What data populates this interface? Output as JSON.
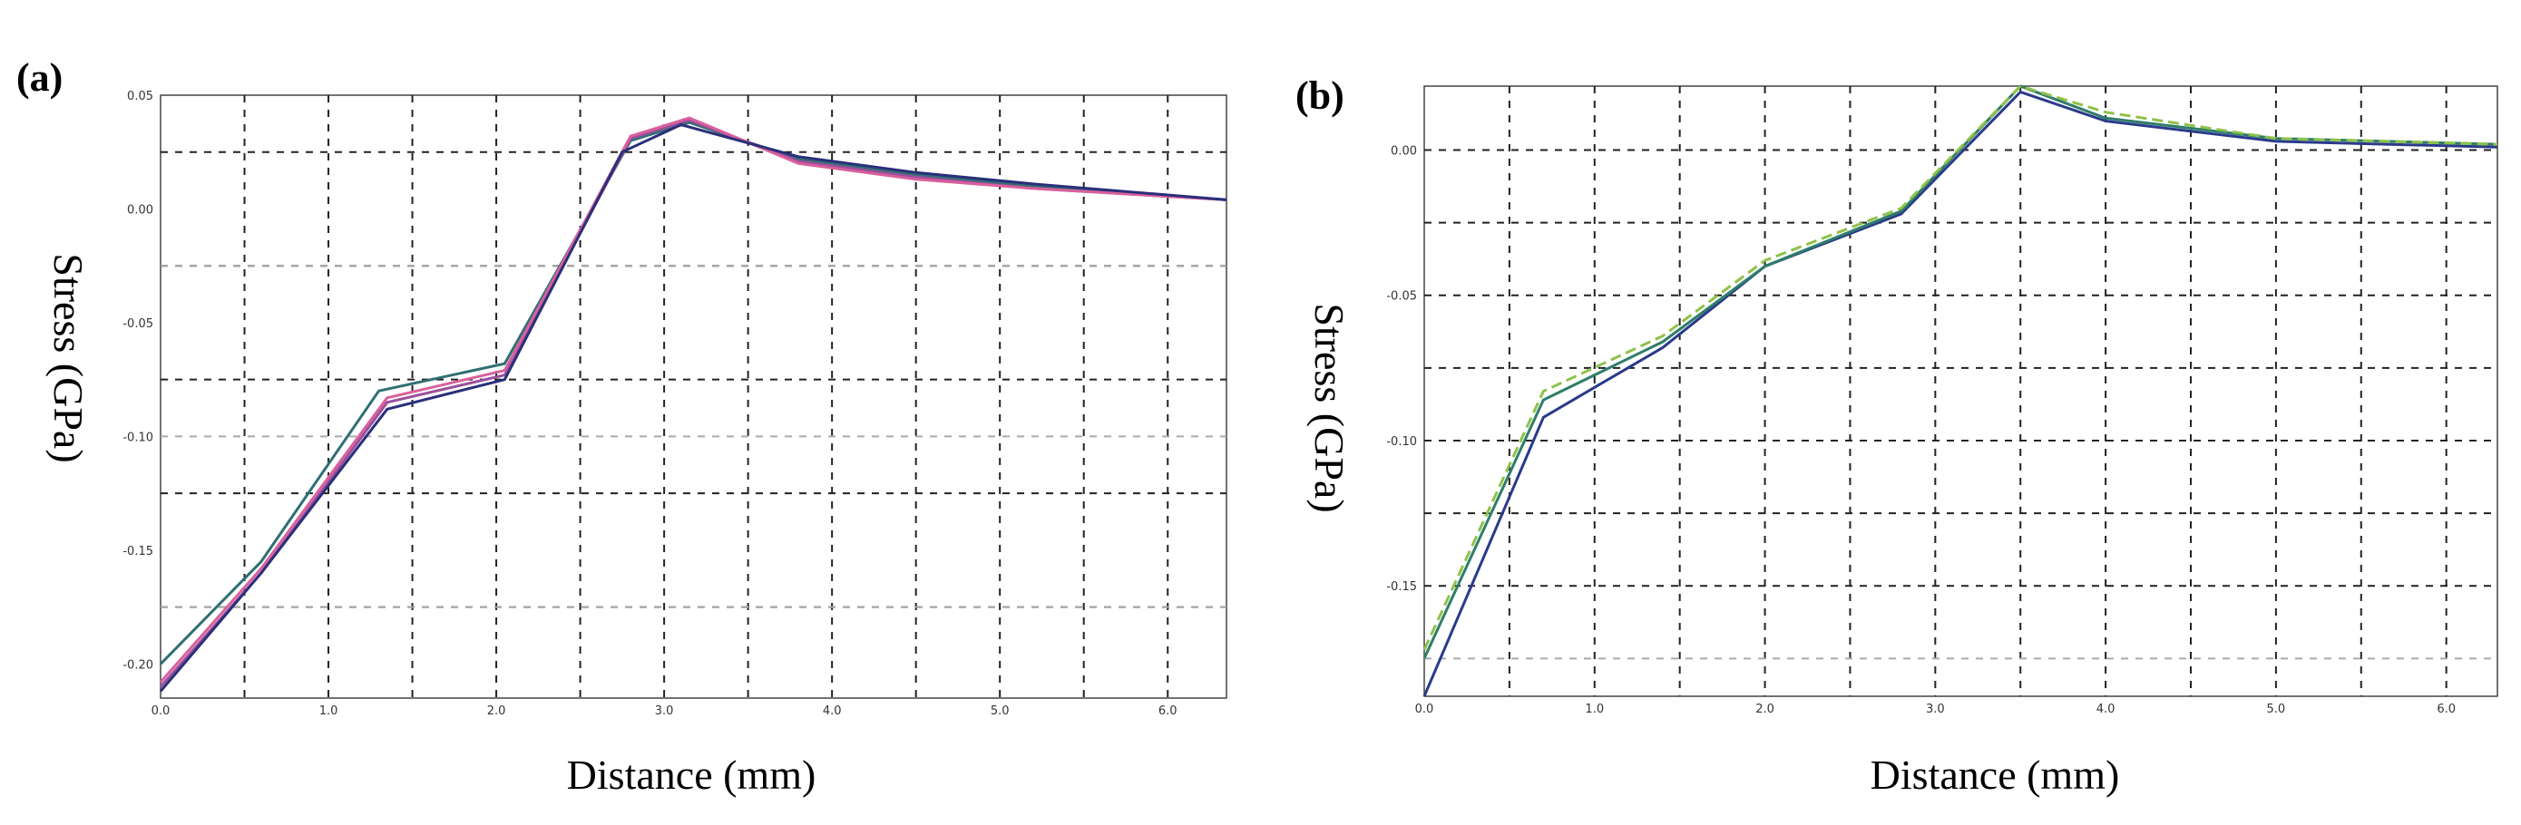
{
  "chart_data": [
    {
      "panel": "(a)",
      "type": "line",
      "xlabel": "Distance (mm)",
      "ylabel": "Stress (GPa)",
      "xlim": [
        0.0,
        6.35
      ],
      "ylim": [
        -0.215,
        0.05
      ],
      "xticks": [
        0.0,
        1.0,
        2.0,
        3.0,
        4.0,
        5.0,
        6.0
      ],
      "xtick_labels": [
        "0.0",
        "1.0",
        "2.0",
        "3.0",
        "4.0",
        "5.0",
        "6.0"
      ],
      "yticks": [
        0.05,
        0.0,
        -0.05,
        -0.1,
        -0.15,
        -0.2
      ],
      "ytick_labels": [
        "0.05",
        "0.00",
        "-0.05",
        "-0.10",
        "-0.15",
        "-0.20"
      ],
      "grid_x": [
        0.5,
        1.0,
        1.5,
        2.0,
        2.5,
        3.0,
        3.5,
        4.0,
        4.5,
        5.0,
        5.5,
        6.0
      ],
      "grid_y": [
        0.025,
        -0.025,
        -0.075,
        -0.125,
        -0.175
      ],
      "grid_light_y": [
        -0.025,
        -0.1,
        -0.175
      ],
      "series": [
        {
          "name": "teal",
          "color": "#2f6f73",
          "dash": "",
          "x": [
            0.0,
            0.6,
            1.3,
            2.05,
            2.8,
            3.15,
            3.8,
            4.5,
            5.2,
            6.35
          ],
          "y": [
            -0.2,
            -0.155,
            -0.08,
            -0.068,
            0.03,
            0.038,
            0.022,
            0.015,
            0.01,
            0.004
          ]
        },
        {
          "name": "purple",
          "color": "#9c4f9c",
          "dash": "",
          "x": [
            0.0,
            0.6,
            1.35,
            2.05,
            2.8,
            3.15,
            3.8,
            4.5,
            5.2,
            6.35
          ],
          "y": [
            -0.21,
            -0.16,
            -0.085,
            -0.073,
            0.031,
            0.039,
            0.021,
            0.014,
            0.009,
            0.004
          ]
        },
        {
          "name": "pink",
          "color": "#d9609c",
          "dash": "",
          "x": [
            0.0,
            0.6,
            1.35,
            2.05,
            2.8,
            3.15,
            3.8,
            4.5,
            5.2,
            6.35
          ],
          "y": [
            -0.208,
            -0.158,
            -0.083,
            -0.071,
            0.032,
            0.04,
            0.02,
            0.013,
            0.009,
            0.004
          ]
        },
        {
          "name": "navy",
          "color": "#2a2f7a",
          "dash": "",
          "x": [
            0.0,
            0.6,
            1.35,
            2.05,
            2.75,
            3.1,
            3.8,
            4.5,
            5.2,
            6.35
          ],
          "y": [
            -0.212,
            -0.16,
            -0.088,
            -0.075,
            0.025,
            0.037,
            0.023,
            0.016,
            0.011,
            0.004
          ]
        }
      ]
    },
    {
      "panel": "(b)",
      "type": "line",
      "xlabel": "Distance (mm)",
      "ylabel": "Stress (GPa)",
      "xlim": [
        0.0,
        6.3
      ],
      "ylim": [
        -0.188,
        0.022
      ],
      "xticks": [
        0.0,
        1.0,
        2.0,
        3.0,
        4.0,
        5.0,
        6.0
      ],
      "xtick_labels": [
        "0.0",
        "1.0",
        "2.0",
        "3.0",
        "4.0",
        "5.0",
        "6.0"
      ],
      "yticks": [
        0.0,
        -0.05,
        -0.1,
        -0.15
      ],
      "ytick_labels": [
        "0.00",
        "-0.05",
        "-0.10",
        "-0.15"
      ],
      "grid_x": [
        0.5,
        1.0,
        1.5,
        2.0,
        2.5,
        3.0,
        3.5,
        4.0,
        4.5,
        5.0,
        5.5,
        6.0
      ],
      "grid_y": [
        0.0,
        -0.025,
        -0.05,
        -0.075,
        -0.1,
        -0.125,
        -0.15
      ],
      "grid_light_y": [
        -0.175
      ],
      "series": [
        {
          "name": "navy",
          "color": "#2a3a8a",
          "dash": "",
          "x": [
            0.0,
            0.7,
            1.4,
            2.0,
            2.8,
            3.5,
            4.0,
            5.0,
            6.3
          ],
          "y": [
            -0.188,
            -0.092,
            -0.068,
            -0.04,
            -0.022,
            0.02,
            0.01,
            0.003,
            0.001
          ]
        },
        {
          "name": "teal",
          "color": "#2f7d6a",
          "dash": "",
          "x": [
            0.0,
            0.7,
            1.4,
            2.0,
            2.8,
            3.5,
            4.0,
            5.0,
            6.3
          ],
          "y": [
            -0.175,
            -0.086,
            -0.066,
            -0.04,
            -0.021,
            0.022,
            0.011,
            0.004,
            0.002
          ]
        },
        {
          "name": "green-dashed",
          "color": "#8fc24a",
          "dash": "12 6",
          "x": [
            0.0,
            0.7,
            1.4,
            2.0,
            2.8,
            3.5,
            4.0,
            5.0,
            6.3
          ],
          "y": [
            -0.172,
            -0.083,
            -0.064,
            -0.038,
            -0.02,
            0.022,
            0.013,
            0.004,
            0.002
          ]
        }
      ]
    }
  ]
}
